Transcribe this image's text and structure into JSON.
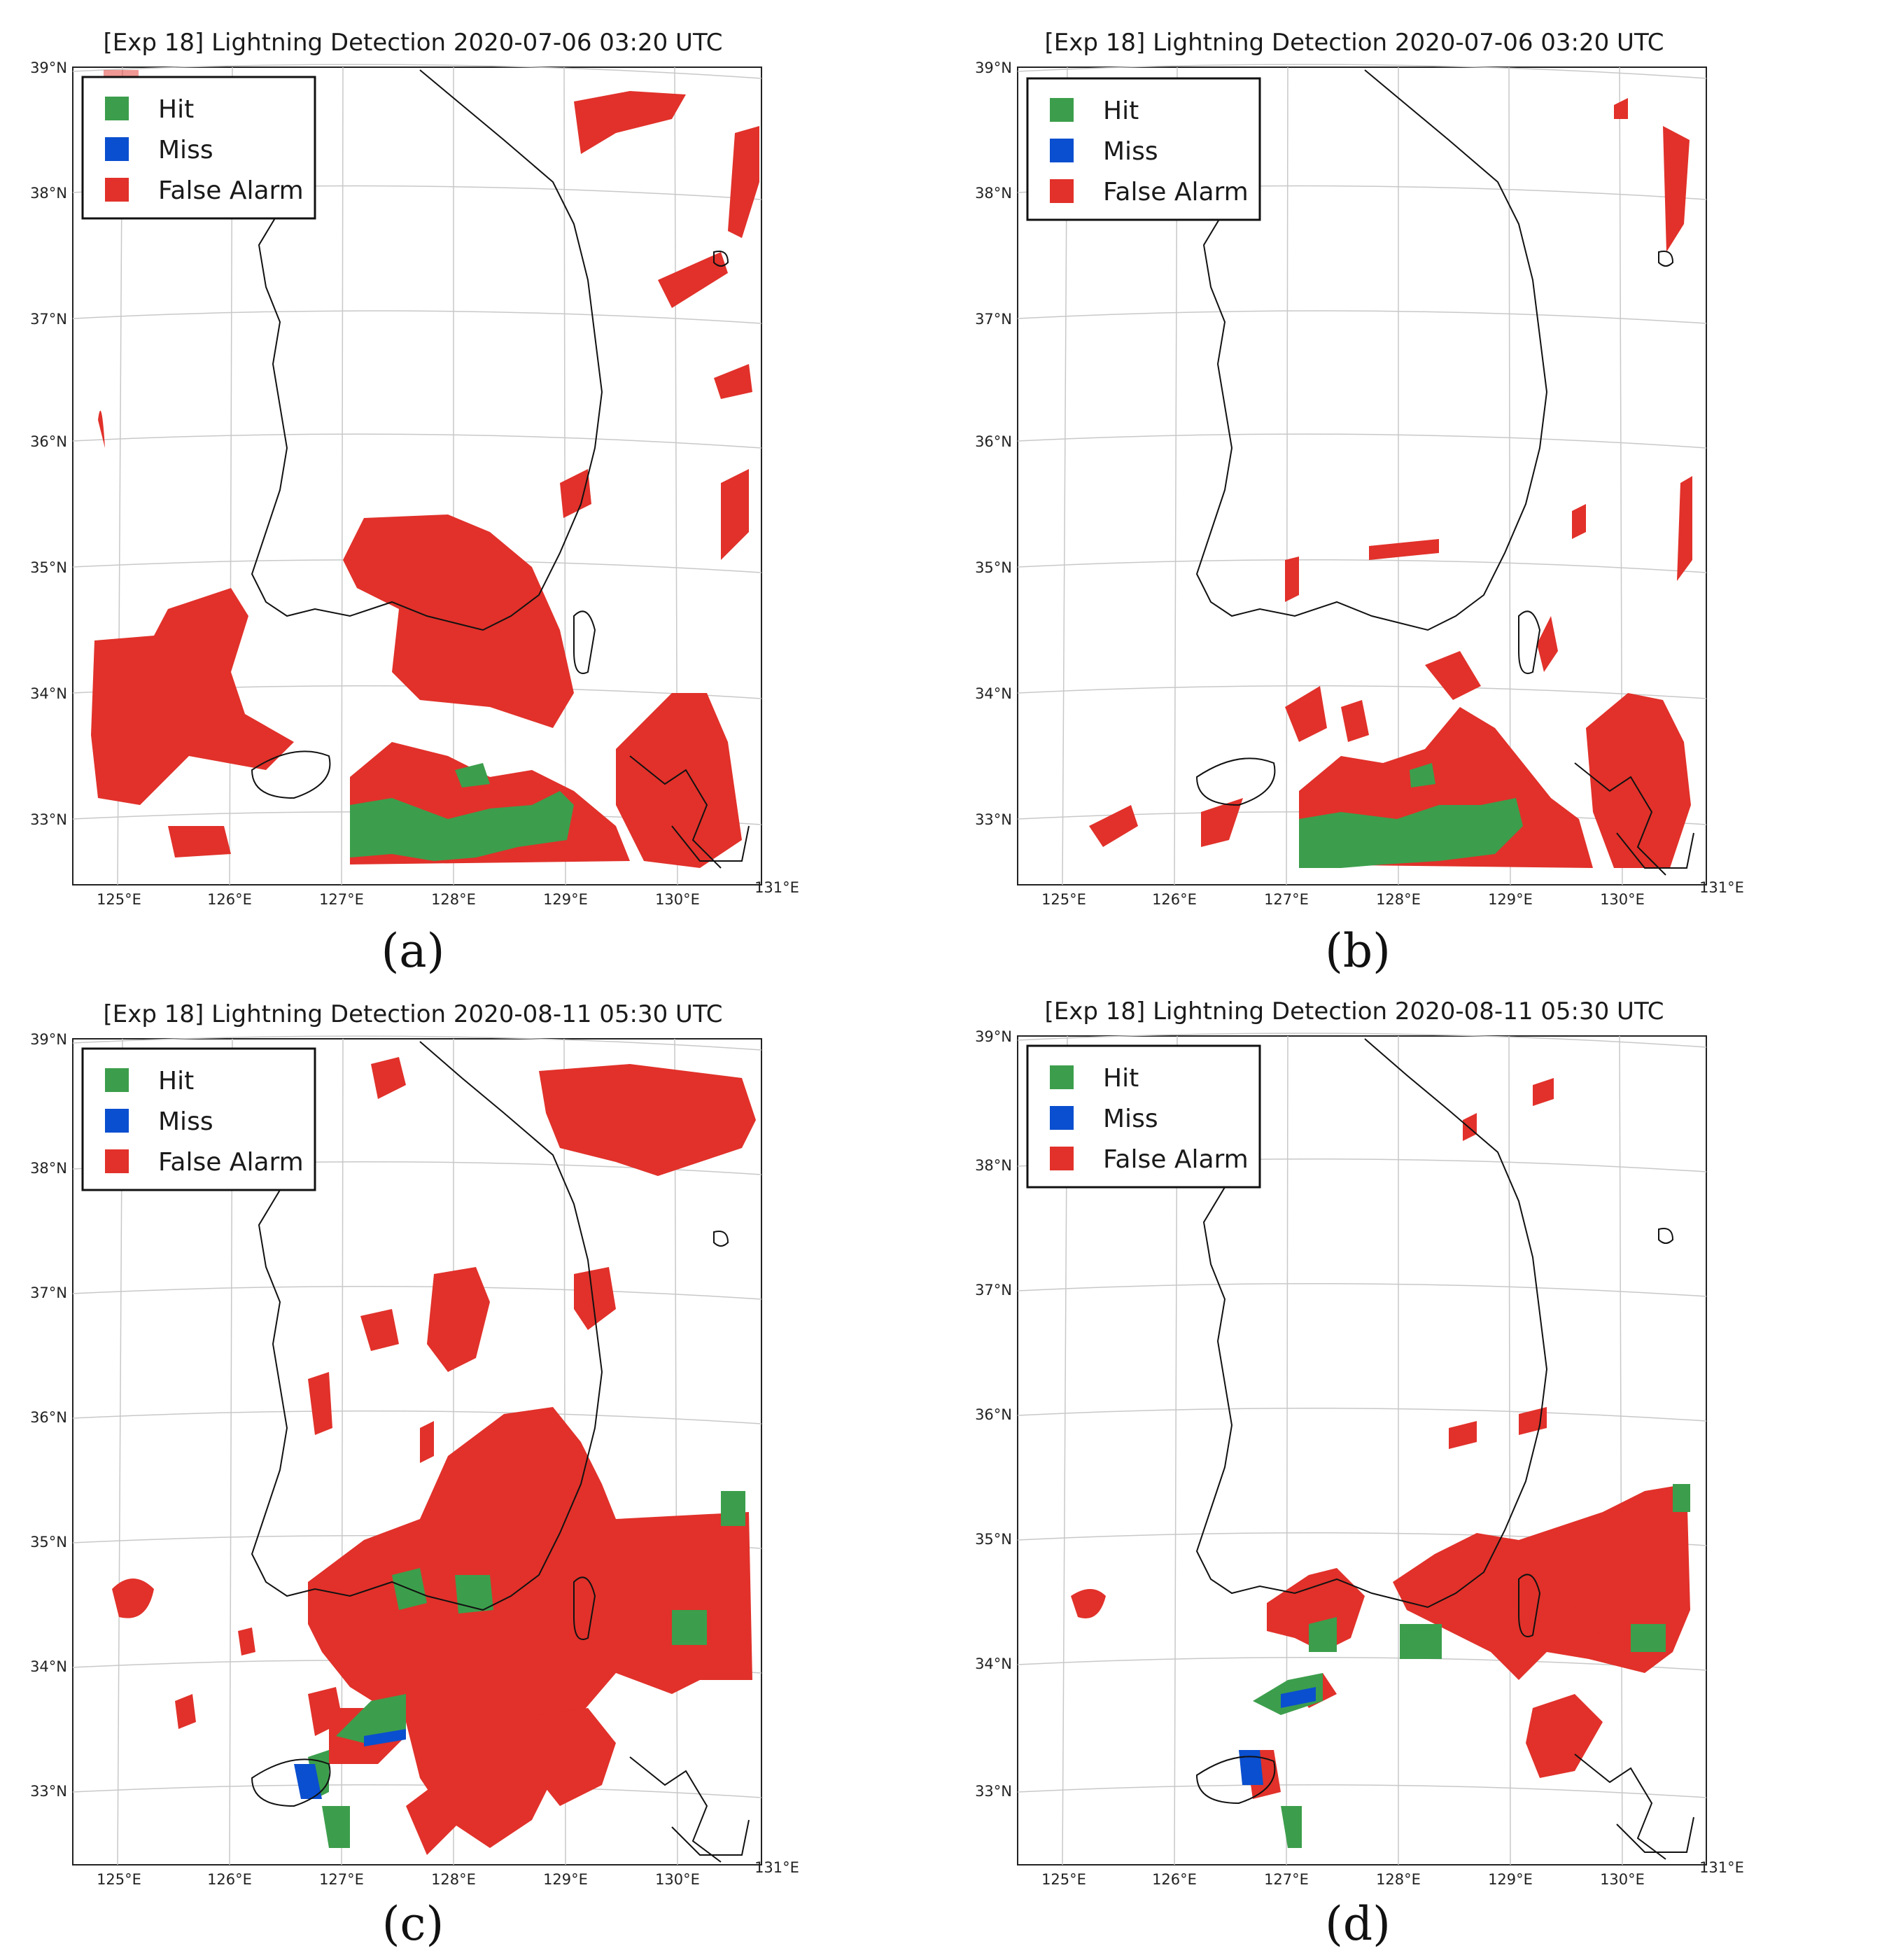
{
  "figure": {
    "panels": [
      {
        "id": "a",
        "title": "[Exp 18] Lightning Detection 2020-07-06 03:20 UTC",
        "caption": "(a)",
        "legend": [
          {
            "label": "Hit",
            "color": "#3c9e4c"
          },
          {
            "label": "Miss",
            "color": "#0a4fcf"
          },
          {
            "label": "False Alarm",
            "color": "#e1312a"
          }
        ]
      },
      {
        "id": "b",
        "title": "[Exp 18] Lightning Detection 2020-07-06 03:20 UTC",
        "caption": "(b)",
        "legend": [
          {
            "label": "Hit",
            "color": "#3c9e4c"
          },
          {
            "label": "Miss",
            "color": "#0a4fcf"
          },
          {
            "label": "False Alarm",
            "color": "#e1312a"
          }
        ]
      },
      {
        "id": "c",
        "title": "[Exp 18] Lightning Detection 2020-08-11 05:30 UTC",
        "caption": "(c)",
        "legend": [
          {
            "label": "Hit",
            "color": "#3c9e4c"
          },
          {
            "label": "Miss",
            "color": "#0a4fcf"
          },
          {
            "label": "False Alarm",
            "color": "#e1312a"
          }
        ]
      },
      {
        "id": "d",
        "title": "[Exp 18] Lightning Detection 2020-08-11 05:30 UTC",
        "caption": "(d)",
        "legend": [
          {
            "label": "Hit",
            "color": "#3c9e4c"
          },
          {
            "label": "Miss",
            "color": "#0a4fcf"
          },
          {
            "label": "False Alarm",
            "color": "#e1312a"
          }
        ]
      }
    ],
    "axes": {
      "lat_labels": [
        "39°N",
        "38°N",
        "37°N",
        "36°N",
        "35°N",
        "34°N",
        "33°N"
      ],
      "lon_labels": [
        "125°E",
        "126°E",
        "127°E",
        "128°E",
        "129°E",
        "130°E",
        "131°E"
      ]
    },
    "colors": {
      "hit": "#3c9e4c",
      "miss": "#0a4fcf",
      "false_alarm": "#e1312a",
      "coastline": "#111111",
      "grid": "#c8c8c8"
    }
  }
}
